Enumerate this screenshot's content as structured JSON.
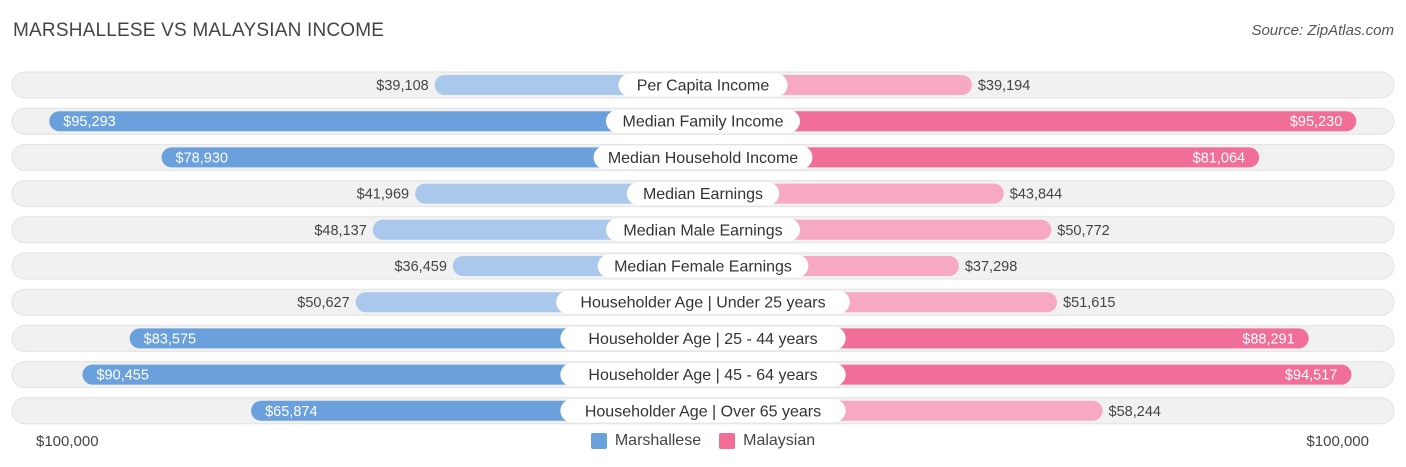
{
  "header": {
    "title": "MARSHALLESE VS MALAYSIAN INCOME",
    "source": "Source: ZipAtlas.com"
  },
  "axis": {
    "left_label": "$100,000",
    "right_label": "$100,000"
  },
  "colors": {
    "left_strong": "#6aa0dc",
    "left_light": "#a9c8ec",
    "right_strong": "#f06e98",
    "right_light": "#f7a8c2",
    "row_bg": "#f1f1f1",
    "row_border": "#e2e2e2"
  },
  "chart_data": {
    "type": "bar",
    "orientation": "horizontal-diverging",
    "max": 100000,
    "categories": [
      "Per Capita Income",
      "Median Family Income",
      "Median Household Income",
      "Median Earnings",
      "Median Male Earnings",
      "Median Female Earnings",
      "Householder Age | Under 25 years",
      "Householder Age | 25 - 44 years",
      "Householder Age | 45 - 64 years",
      "Householder Age | Over 65 years"
    ],
    "series": [
      {
        "name": "Marshallese",
        "values": [
          39108,
          95293,
          78930,
          41969,
          48137,
          36459,
          50627,
          83575,
          90455,
          65874
        ],
        "labels": [
          "$39,108",
          "$95,293",
          "$78,930",
          "$41,969",
          "$48,137",
          "$36,459",
          "$50,627",
          "$83,575",
          "$90,455",
          "$65,874"
        ]
      },
      {
        "name": "Malaysian",
        "values": [
          39194,
          95230,
          81064,
          43844,
          50772,
          37298,
          51615,
          88291,
          94517,
          58244
        ],
        "labels": [
          "$39,194",
          "$95,230",
          "$81,064",
          "$43,844",
          "$50,772",
          "$37,298",
          "$51,615",
          "$88,291",
          "$94,517",
          "$58,244"
        ]
      }
    ],
    "legend_position": "bottom-center"
  }
}
